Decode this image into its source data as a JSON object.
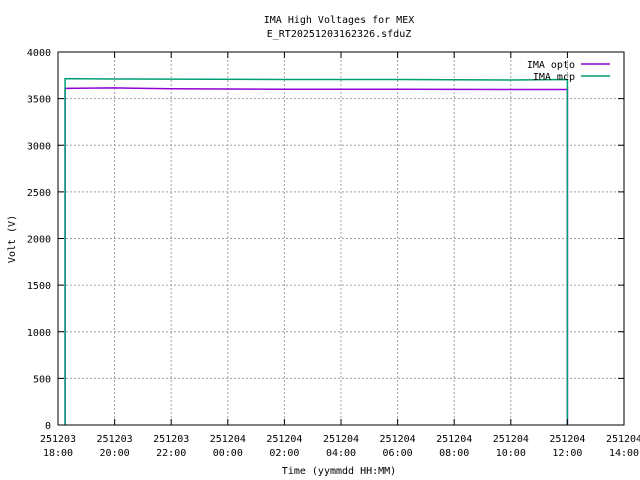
{
  "chart_data": {
    "type": "line",
    "title": "IMA High Voltages for MEX",
    "subtitle": "E_RT20251203162326.sfduZ",
    "xlabel": "Time (yymmdd HH:MM)",
    "ylabel": "Volt (V)",
    "xlim": [
      "2025-12-03 18:00",
      "2025-12-04 14:00"
    ],
    "ylim": [
      0,
      4000
    ],
    "grid": true,
    "legend_position": "top-right",
    "yticks": [
      0,
      500,
      1000,
      1500,
      2000,
      2500,
      3000,
      3500,
      4000
    ],
    "xticks": [
      {
        "date": "251203",
        "time": "18:00"
      },
      {
        "date": "251203",
        "time": "20:00"
      },
      {
        "date": "251203",
        "time": "22:00"
      },
      {
        "date": "251204",
        "time": "00:00"
      },
      {
        "date": "251204",
        "time": "02:00"
      },
      {
        "date": "251204",
        "time": "04:00"
      },
      {
        "date": "251204",
        "time": "06:00"
      },
      {
        "date": "251204",
        "time": "08:00"
      },
      {
        "date": "251204",
        "time": "10:00"
      },
      {
        "date": "251204",
        "time": "12:00"
      },
      {
        "date": "251204",
        "time": "14:00"
      }
    ],
    "series": [
      {
        "name": "IMA opto",
        "color": "#9400d3",
        "points": [
          [
            "2025-12-03 18:15",
            0
          ],
          [
            "2025-12-03 18:15",
            3610
          ],
          [
            "2025-12-03 20:00",
            3615
          ],
          [
            "2025-12-03 22:00",
            3605
          ],
          [
            "2025-12-04 02:00",
            3600
          ],
          [
            "2025-12-04 06:00",
            3600
          ],
          [
            "2025-12-04 10:00",
            3598
          ],
          [
            "2025-12-04 12:00",
            3598
          ],
          [
            "2025-12-04 12:00",
            0
          ]
        ]
      },
      {
        "name": "IMA mcp",
        "color": "#009e73",
        "points": [
          [
            "2025-12-03 18:15",
            0
          ],
          [
            "2025-12-03 18:15",
            3715
          ],
          [
            "2025-12-03 20:00",
            3710
          ],
          [
            "2025-12-04 02:00",
            3705
          ],
          [
            "2025-12-04 06:00",
            3705
          ],
          [
            "2025-12-04 10:00",
            3700
          ],
          [
            "2025-12-04 12:00",
            3705
          ],
          [
            "2025-12-04 12:00",
            0
          ]
        ]
      }
    ]
  }
}
